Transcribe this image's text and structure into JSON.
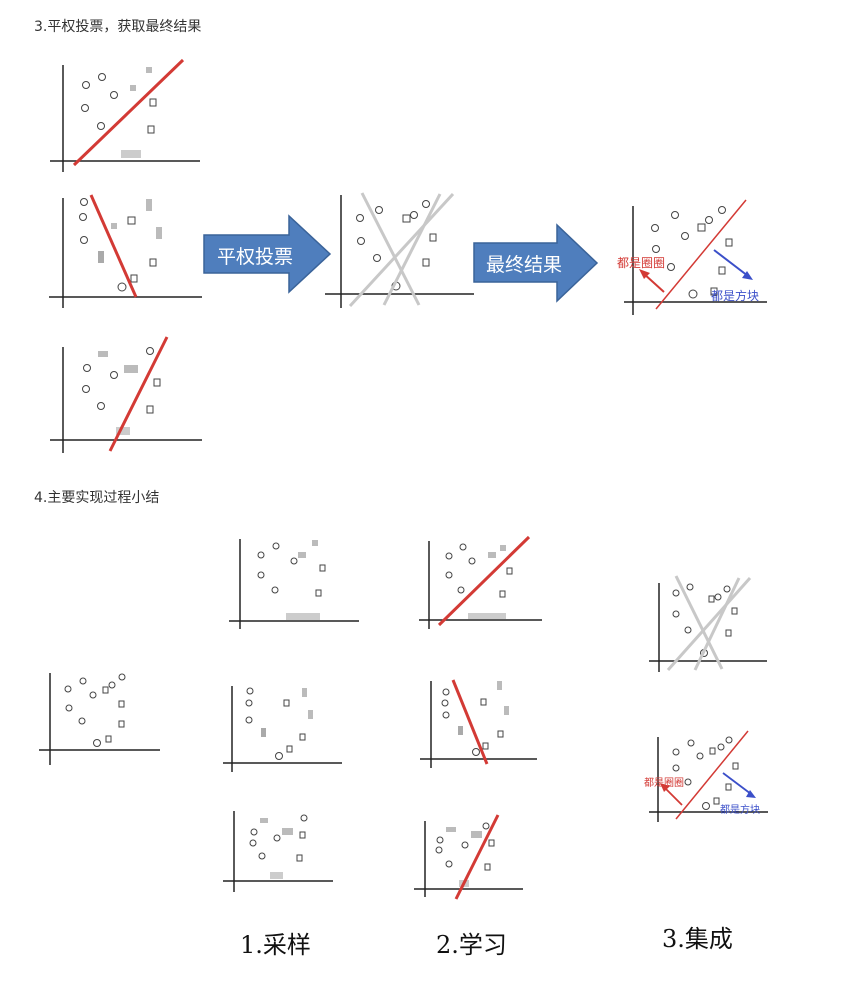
{
  "section3": {
    "heading": "3.平权投票，获取最终结果",
    "arrow_vote": "平权投票",
    "arrow_final": "最终结果",
    "note_circles": "都是圈圈",
    "note_squares": "都是方块"
  },
  "section4": {
    "heading": "4.主要实现过程小结",
    "step_sampling": "1.采样",
    "step_learning": "2.学习",
    "step_ensemble": "3.集成",
    "note_circles": "都是圈圈",
    "note_squares": "都是方块"
  },
  "colors": {
    "red": "#d33a35",
    "blue": "#3b4fc9",
    "gray_line": "#c8c8c8",
    "arrow_fill": "#4f7ebd",
    "arrow_border": "#3a6399",
    "axis": "#222222"
  }
}
